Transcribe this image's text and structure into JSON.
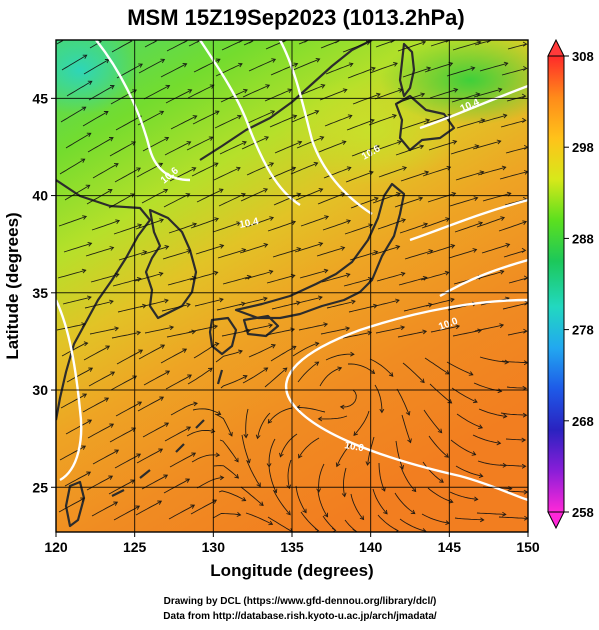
{
  "title": "MSM 15Z19Sep2023 (1013.2hPa)",
  "xlabel": "Longitude (degrees)",
  "ylabel": "Latitude  (degrees)",
  "x_ticks": [
    "120",
    "125",
    "130",
    "135",
    "140",
    "145",
    "150"
  ],
  "y_ticks": [
    "25",
    "30",
    "35",
    "40",
    "45"
  ],
  "colorbar": {
    "ticks": [
      "308",
      "298",
      "288",
      "278",
      "268",
      "258"
    ],
    "colors": [
      "#ff2a2a",
      "#ff8a1a",
      "#ffc21a",
      "#d8e81a",
      "#5ce01e",
      "#1cc85a",
      "#22d8c0",
      "#22a8f0",
      "#1e5ae8",
      "#2a22c0",
      "#8a1ed8",
      "#ff28d8"
    ]
  },
  "contour_labels": [
    "10.6",
    "10.6",
    "10.4",
    "10.0",
    "10.0",
    "10.4"
  ],
  "credits": {
    "line1": "Drawing by DCL (https://www.gfd-dennou.org/library/dcl/)",
    "line2": "Data from http://database.rish.kyoto-u.ac.jp/arch/jmadata/"
  },
  "land_color": "#2c2c2c"
}
